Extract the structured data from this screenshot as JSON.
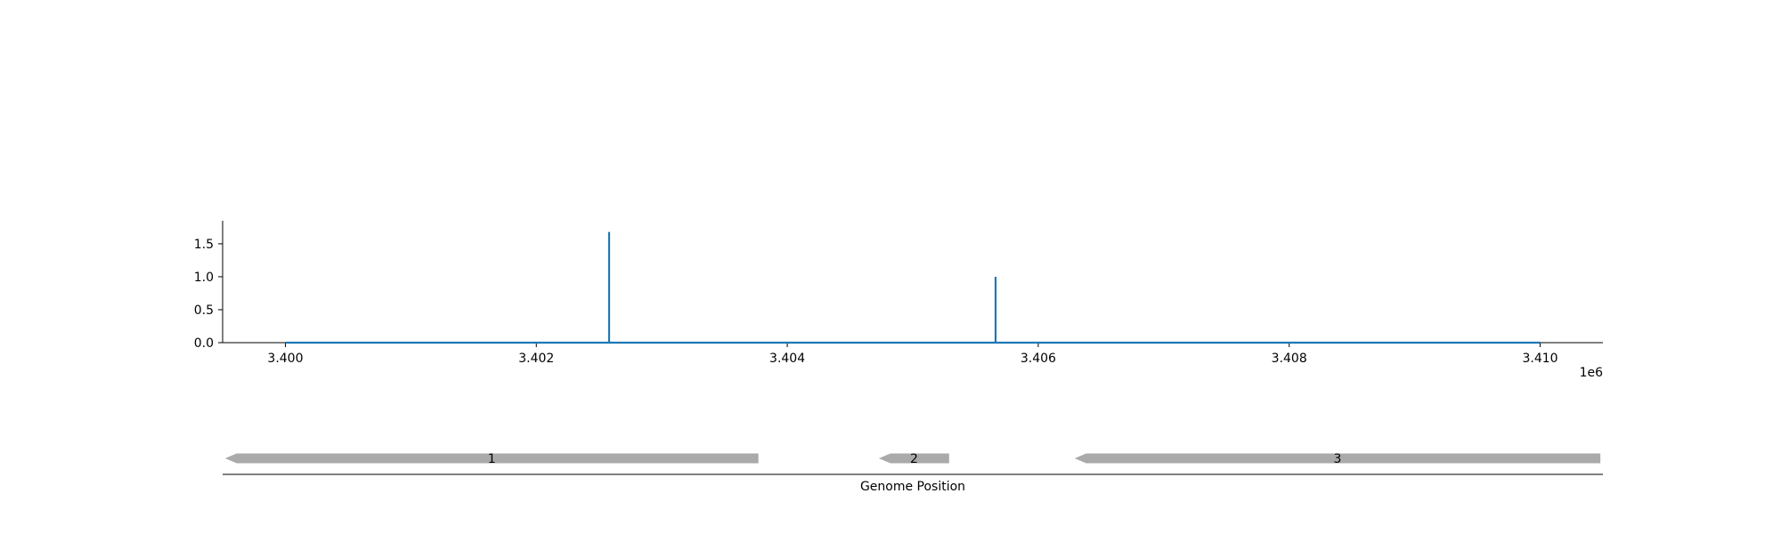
{
  "chart_data": [
    {
      "type": "line",
      "title": "",
      "xlabel": "",
      "ylabel": "",
      "x_offset_label": "1e6",
      "xlim": [
        3.3995,
        3.4105
      ],
      "ylim": [
        0.0,
        1.85
      ],
      "x_ticks": [
        3.4,
        3.402,
        3.404,
        3.406,
        3.408,
        3.41
      ],
      "x_tick_labels": [
        "3.400",
        "3.402",
        "3.404",
        "3.406",
        "3.408",
        "3.410"
      ],
      "y_ticks": [
        0.0,
        0.5,
        1.0,
        1.5
      ],
      "y_tick_labels": [
        "0.0",
        "0.5",
        "1.0",
        "1.5"
      ],
      "grid": false,
      "series": [
        {
          "color": "#1f77b4",
          "x": [
            3.4,
            3.40258,
            3.40258,
            3.40258,
            3.40566,
            3.40566,
            3.40566,
            3.41
          ],
          "y": [
            0,
            0,
            1.68,
            0,
            0,
            1.0,
            0,
            0
          ]
        }
      ]
    },
    {
      "type": "gene-track",
      "xlabel": "Genome Position",
      "xlim": [
        3.3995,
        3.4105
      ],
      "color": "#aaaaaa",
      "features": [
        {
          "label": "1",
          "start": 3.39952,
          "end": 3.40377,
          "strand": "-"
        },
        {
          "label": "2",
          "start": 3.40473,
          "end": 3.40529,
          "strand": "-"
        },
        {
          "label": "3",
          "start": 3.40629,
          "end": 3.41048,
          "strand": "-"
        }
      ]
    }
  ]
}
